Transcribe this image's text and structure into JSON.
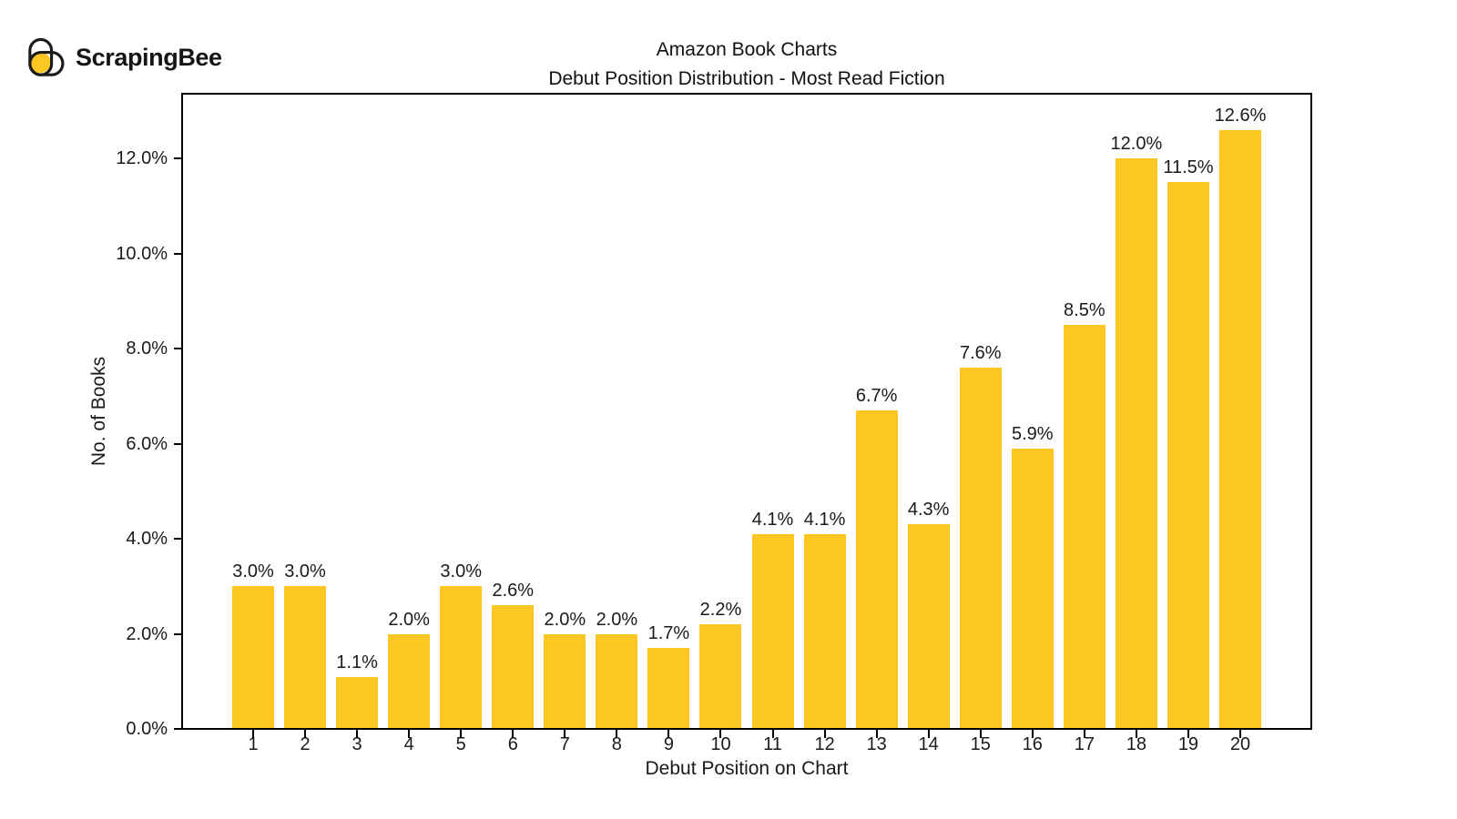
{
  "logo": {
    "text": "ScrapingBee"
  },
  "title": {
    "line1": "Amazon Book Charts",
    "line2": "Debut Position Distribution - Most Read Fiction"
  },
  "colors": {
    "bar": "#FCC623",
    "logo_yellow": "#FCC623",
    "logo_outline": "#1b1b1b",
    "text": "#1a1a1a",
    "spine": "#000000"
  },
  "chart_data": {
    "type": "bar",
    "title": "Amazon Book Charts",
    "subtitle": "Debut Position Distribution - Most Read Fiction",
    "xlabel": "Debut Position on Chart",
    "ylabel": "No. of Books",
    "categories": [
      "1",
      "2",
      "3",
      "4",
      "5",
      "6",
      "7",
      "8",
      "9",
      "10",
      "11",
      "12",
      "13",
      "14",
      "15",
      "16",
      "17",
      "18",
      "19",
      "20"
    ],
    "values": [
      3.0,
      3.0,
      1.1,
      2.0,
      3.0,
      2.6,
      2.0,
      2.0,
      1.7,
      2.2,
      4.1,
      4.1,
      6.7,
      4.3,
      7.6,
      5.9,
      8.5,
      12.0,
      11.5,
      12.6
    ],
    "bar_labels": [
      "3.0%",
      "3.0%",
      "1.1%",
      "2.0%",
      "3.0%",
      "2.6%",
      "2.0%",
      "2.0%",
      "1.7%",
      "2.2%",
      "4.1%",
      "4.1%",
      "6.7%",
      "4.3%",
      "7.6%",
      "5.9%",
      "8.5%",
      "12.0%",
      "11.5%",
      "12.6%"
    ],
    "ytick_labels": [
      "0.0%",
      "2.0%",
      "4.0%",
      "6.0%",
      "8.0%",
      "10.0%",
      "12.0%"
    ],
    "ytick_values": [
      0,
      2,
      4,
      6,
      8,
      10,
      12
    ],
    "ylim": [
      0,
      13.36
    ],
    "grid": false,
    "legend": null,
    "bar_color": "#FCC623"
  }
}
